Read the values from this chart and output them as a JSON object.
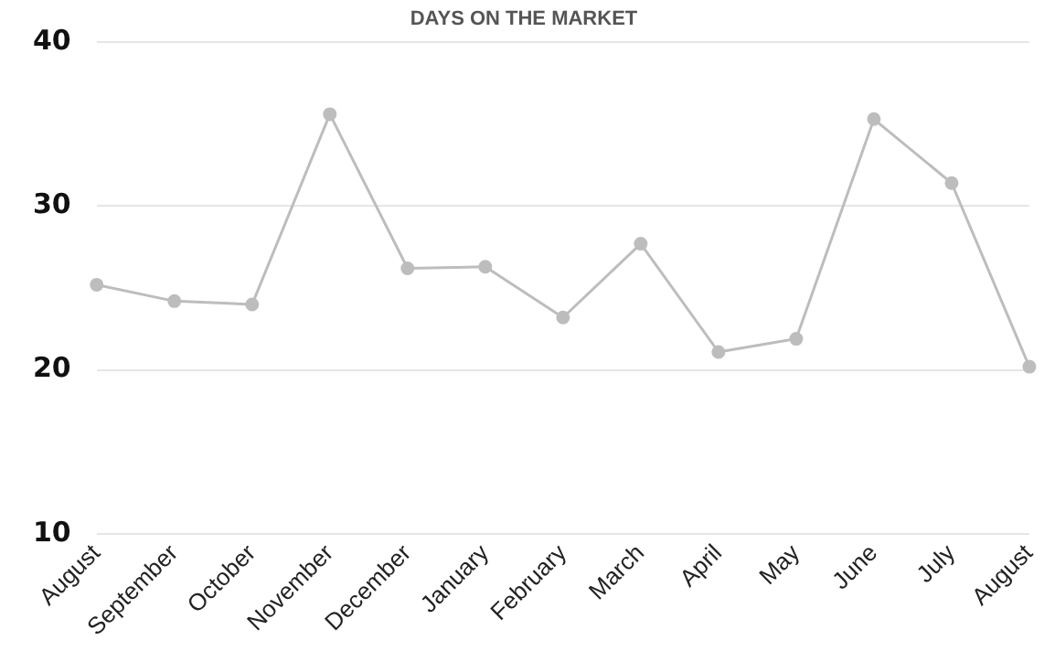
{
  "chart_data": {
    "type": "line",
    "title": "DAYS ON THE MARKET",
    "categories": [
      "August",
      "September",
      "October",
      "November",
      "December",
      "January",
      "February",
      "March",
      "April",
      "May",
      "June",
      "July",
      "August"
    ],
    "series": [
      {
        "color": "#bdbdbd",
        "values": [
          25.2,
          24.2,
          24.0,
          35.6,
          26.2,
          26.3,
          23.2,
          27.7,
          21.1,
          21.9,
          35.3,
          31.4,
          20.2
        ]
      }
    ],
    "ylim": [
      10,
      40
    ],
    "yticks": [
      10,
      20,
      30,
      40
    ],
    "grid": "y",
    "legend": false,
    "marker": "circle"
  }
}
